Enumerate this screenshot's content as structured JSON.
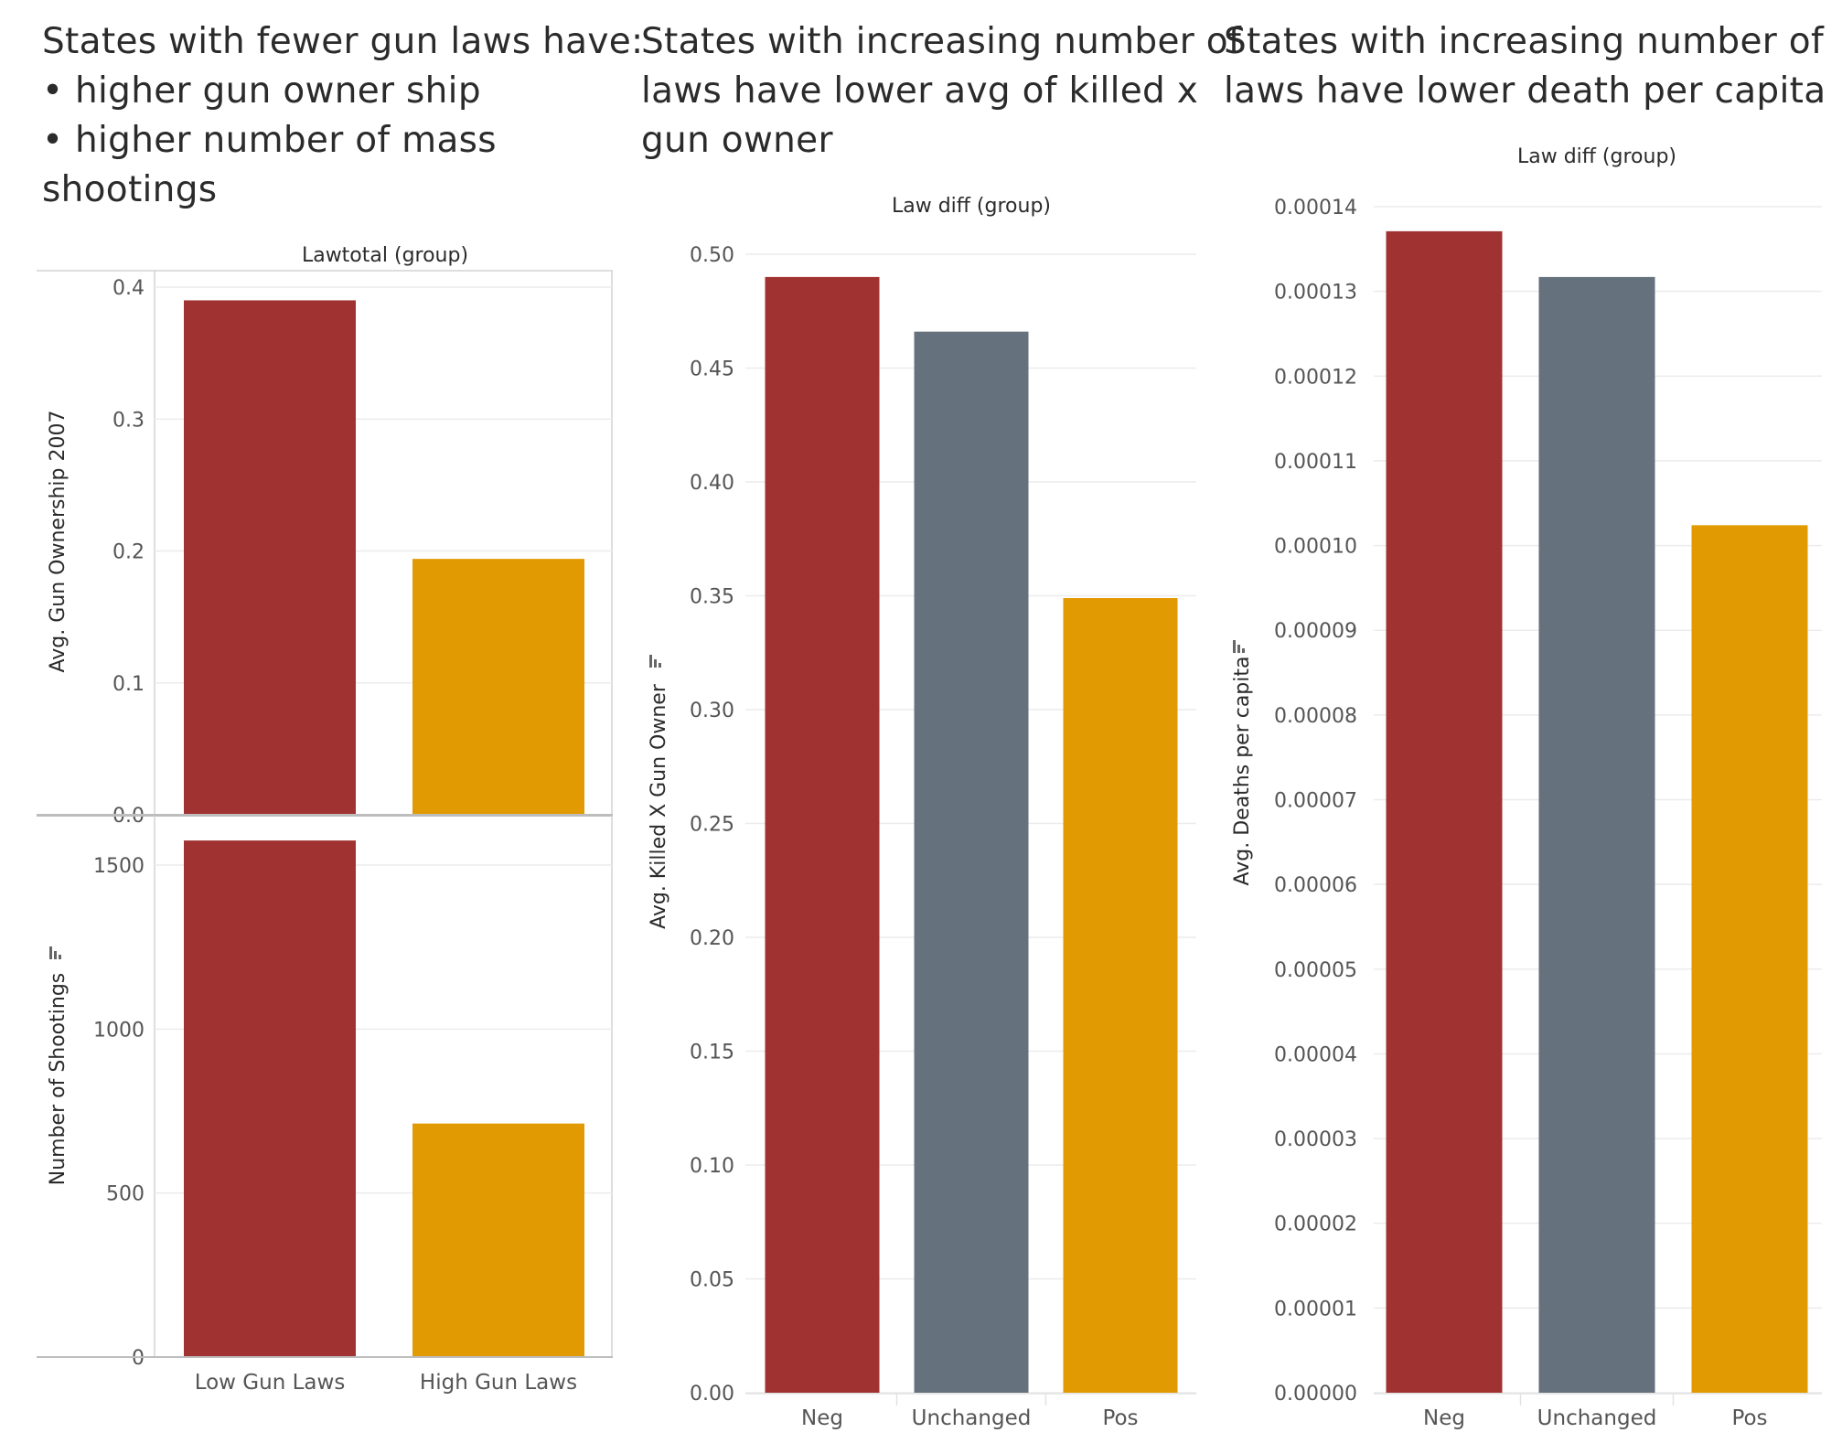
{
  "panels": [
    {
      "title_lines": [
        "States with fewer gun laws have:",
        "• higher gun owner ship",
        "• higher number of mass",
        "shootings"
      ]
    },
    {
      "title_lines": [
        "States with increasing number of",
        "laws have lower avg of killed x",
        "gun owner"
      ]
    },
    {
      "title_lines": [
        "States with increasing number of",
        "laws have lower death per capita"
      ]
    }
  ],
  "colors": {
    "neg": "#a03332",
    "unchanged": "#65727d",
    "pos": "#e29a02"
  },
  "chart_data": [
    {
      "type": "bar",
      "header": "Lawtotal (group)",
      "categories": [
        "Low Gun Laws",
        "High Gun Laws"
      ],
      "ylabel": "Avg. Gun Ownership 2007",
      "ylim": [
        0,
        0.4
      ],
      "yticks": [
        "0.0",
        "0.1",
        "0.2",
        "0.3",
        "0.4"
      ],
      "values": [
        0.39,
        0.194
      ],
      "colors": [
        "#a03332",
        "#e29a02"
      ]
    },
    {
      "type": "bar",
      "categories": [
        "Low Gun Laws",
        "High Gun Laws"
      ],
      "ylabel": "Number of Shootings",
      "ylim": [
        0,
        1500
      ],
      "yticks": [
        "0",
        "500",
        "1000",
        "1500"
      ],
      "values": [
        1575,
        712
      ],
      "colors": [
        "#a03332",
        "#e29a02"
      ]
    },
    {
      "type": "bar",
      "header": "Law diff (group)",
      "categories": [
        "Neg",
        "Unchanged",
        "Pos"
      ],
      "ylabel": "Avg. Killed X Gun Owner",
      "ylim": [
        0,
        0.5
      ],
      "yticks": [
        "0.00",
        "0.05",
        "0.10",
        "0.15",
        "0.20",
        "0.25",
        "0.30",
        "0.35",
        "0.40",
        "0.45",
        "0.50"
      ],
      "values": [
        0.49,
        0.466,
        0.349
      ],
      "colors": [
        "#a03332",
        "#65727d",
        "#e29a02"
      ]
    },
    {
      "type": "bar",
      "header": "Law diff (group)",
      "categories": [
        "Neg",
        "Unchanged",
        "Pos"
      ],
      "ylabel": "Avg. Deaths per capita",
      "ylim": [
        0,
        0.00014
      ],
      "yticks": [
        "0.00000",
        "0.00001",
        "0.00002",
        "0.00003",
        "0.00004",
        "0.00005",
        "0.00006",
        "0.00007",
        "0.00008",
        "0.00009",
        "0.00010",
        "0.00011",
        "0.00012",
        "0.00013",
        "0.00014"
      ],
      "values": [
        0.0001371,
        0.0001317,
        0.0001024
      ],
      "colors": [
        "#a03332",
        "#65727d",
        "#e29a02"
      ]
    }
  ]
}
